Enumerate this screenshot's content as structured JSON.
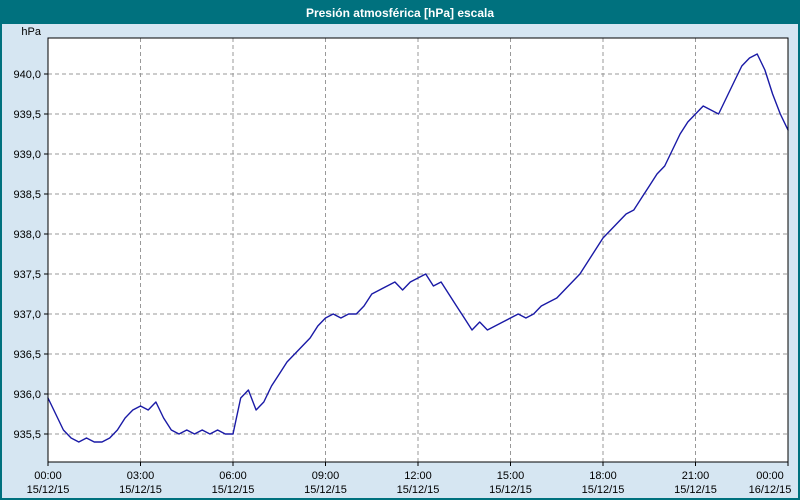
{
  "window": {
    "title": "Presión atmosférica [hPa] escala"
  },
  "colors": {
    "titlebar_bg": "#00717e",
    "window_bg": "#d6e6f2",
    "plot_bg": "#ffffff",
    "grid": "#999999",
    "line": "#1a1aa6",
    "axis": "#000000",
    "frame_border": "#00717e"
  },
  "chart_data": {
    "type": "line",
    "title": "Presión atmosférica [hPa] escala",
    "y_unit_label": "hPa",
    "grid": true,
    "legend": "none",
    "xlim": [
      0,
      24
    ],
    "ylim": [
      935.15,
      940.45
    ],
    "y_ticks": [
      935.5,
      936.0,
      936.5,
      937.0,
      937.5,
      938.0,
      938.5,
      939.0,
      939.5,
      940.0
    ],
    "y_tick_labels": [
      "935,5",
      "936,0",
      "936,5",
      "937,0",
      "937,5",
      "938,0",
      "938,5",
      "939,0",
      "939,5",
      "940,0"
    ],
    "x_ticks": [
      0,
      3,
      6,
      9,
      12,
      15,
      18,
      21,
      24
    ],
    "x_tick_time_labels": [
      "00:00",
      "03:00",
      "06:00",
      "09:00",
      "12:00",
      "15:00",
      "18:00",
      "21:00",
      "00:00"
    ],
    "x_tick_date_labels": [
      "15/12/15",
      "15/12/15",
      "15/12/15",
      "15/12/15",
      "15/12/15",
      "15/12/15",
      "15/12/15",
      "15/12/15",
      "16/12/15"
    ],
    "series": [
      {
        "name": "Presión atmosférica",
        "x_start_hours": 0,
        "x_step_hours": 0.25,
        "values": [
          935.95,
          935.75,
          935.55,
          935.45,
          935.4,
          935.45,
          935.4,
          935.4,
          935.45,
          935.55,
          935.7,
          935.8,
          935.85,
          935.8,
          935.9,
          935.7,
          935.55,
          935.5,
          935.55,
          935.5,
          935.55,
          935.5,
          935.55,
          935.5,
          935.5,
          935.95,
          936.05,
          935.8,
          935.9,
          936.1,
          936.25,
          936.4,
          936.5,
          936.6,
          936.7,
          936.85,
          936.95,
          937.0,
          936.95,
          937.0,
          937.0,
          937.1,
          937.25,
          937.3,
          937.35,
          937.4,
          937.3,
          937.4,
          937.45,
          937.5,
          937.35,
          937.4,
          937.25,
          937.1,
          936.95,
          936.8,
          936.9,
          936.8,
          936.85,
          936.9,
          936.95,
          937.0,
          936.95,
          937.0,
          937.1,
          937.15,
          937.2,
          937.3,
          937.4,
          937.5,
          937.65,
          937.8,
          937.95,
          938.05,
          938.15,
          938.25,
          938.3,
          938.45,
          938.6,
          938.75,
          938.85,
          939.05,
          939.25,
          939.4,
          939.5,
          939.6,
          939.55,
          939.5,
          939.7,
          939.9,
          940.1,
          940.2,
          940.25,
          940.05,
          939.75,
          939.5,
          939.3
        ]
      }
    ]
  }
}
